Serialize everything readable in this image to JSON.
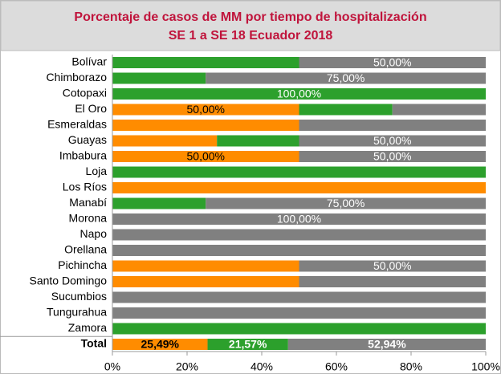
{
  "chart_data": {
    "type": "stacked-barh",
    "title": "Porcentaje de casos de MM por tiempo de hospitalización",
    "subtitle": "SE 1 a SE 18  Ecuador 2018",
    "categories": [
      "Bolívar",
      "Chimborazo",
      "Cotopaxi",
      "El Oro",
      "Esmeraldas",
      "Guayas",
      "Imbabura",
      "Loja",
      "Los Ríos",
      "Manabí",
      "Morona",
      "Napo",
      "Orellana",
      "Pichincha",
      "Santo Domingo",
      "Sucumbios",
      "Tungurahua",
      "Zamora",
      "Total"
    ],
    "series": [
      {
        "color": "#ff8c00",
        "label_color": "#000000",
        "values": [
          0,
          0,
          0,
          50,
          50,
          28,
          50,
          0,
          100,
          0,
          0,
          0,
          0,
          50,
          50,
          0,
          0,
          0,
          25.49
        ],
        "value_labels": [
          null,
          null,
          null,
          "50,00%",
          null,
          null,
          "50,00%",
          null,
          null,
          null,
          null,
          null,
          null,
          null,
          null,
          null,
          null,
          null,
          "25,49%"
        ]
      },
      {
        "color": "#2ca02c",
        "label_color": "#ffffff",
        "values": [
          50,
          25,
          100,
          25,
          0,
          22,
          0,
          100,
          0,
          25,
          0,
          0,
          0,
          0,
          0,
          0,
          0,
          100,
          21.57
        ],
        "value_labels": [
          null,
          null,
          "100,00%",
          null,
          null,
          null,
          null,
          null,
          null,
          null,
          null,
          null,
          null,
          null,
          null,
          null,
          null,
          null,
          "21,57%"
        ]
      },
      {
        "color": "#808080",
        "label_color": "#ffffff",
        "values": [
          50,
          75,
          0,
          25,
          50,
          50,
          50,
          0,
          0,
          75,
          100,
          100,
          100,
          50,
          50,
          100,
          100,
          0,
          52.94
        ],
        "value_labels": [
          "50,00%",
          "75,00%",
          null,
          null,
          null,
          "50,00%",
          "50,00%",
          null,
          null,
          "75,00%",
          "100,00%",
          null,
          null,
          "50,00%",
          null,
          null,
          null,
          null,
          "52,94%"
        ]
      }
    ],
    "xlim": [
      0,
      100
    ],
    "xticks": [
      {
        "value": 0,
        "label": "0%"
      },
      {
        "value": 20,
        "label": "20%"
      },
      {
        "value": 40,
        "label": "40%"
      },
      {
        "value": 60,
        "label": "60%"
      },
      {
        "value": 80,
        "label": "80%"
      },
      {
        "value": 100,
        "label": "100%"
      }
    ]
  }
}
